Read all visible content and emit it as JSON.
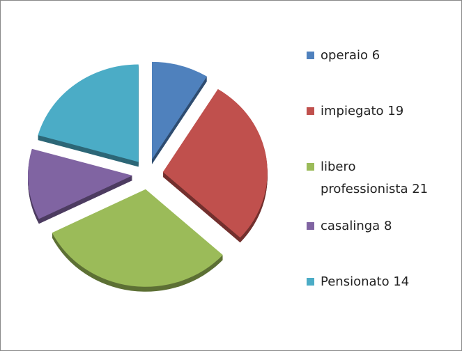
{
  "chart_data": {
    "type": "pie",
    "categories": [
      "operaio",
      "impiegato",
      "libero professionista",
      "casalinga",
      "Pensionato"
    ],
    "values": [
      6,
      19,
      21,
      8,
      14
    ],
    "colors": [
      "#4f81bd",
      "#c0504d",
      "#9bbb59",
      "#8064a2",
      "#4bacc6"
    ],
    "legend": "right"
  }
}
